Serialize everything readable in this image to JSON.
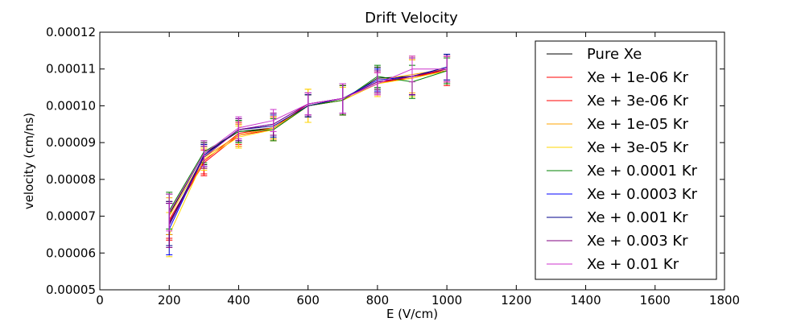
{
  "chart_data": {
    "type": "line",
    "title": "Drift Velocity",
    "xlabel": "E (V/cm)",
    "ylabel": "velocity (cm/ns)",
    "xlim": [
      0,
      1800
    ],
    "ylim": [
      5e-05,
      0.00012
    ],
    "xticks": [
      "0",
      "200",
      "400",
      "600",
      "800",
      "1000",
      "1200",
      "1400",
      "1600",
      "1800"
    ],
    "yticks": [
      "0.00005",
      "0.00006",
      "0.00007",
      "0.00008",
      "0.00009",
      "0.00010",
      "0.00011",
      "0.00012"
    ],
    "grid": false,
    "legend_position": "top-right",
    "x": [
      200,
      300,
      400,
      500,
      600,
      700,
      800,
      900,
      1000
    ],
    "series": [
      {
        "name": "Pure Xe",
        "color": "#000000",
        "values": [
          7.05e-05,
          8.7e-05,
          9.3e-05,
          9.4e-05,
          0.0001,
          0.0001015,
          0.0001075,
          0.000108,
          0.0001095
        ],
        "errors": [
          5.5e-06,
          3e-06,
          3e-06,
          3e-06,
          3e-06,
          4e-06,
          3e-06,
          5e-06,
          3.5e-06
        ]
      },
      {
        "name": "Xe + 1e-06 Kr",
        "color": "#ff0000",
        "values": [
          6.9e-05,
          8.5e-05,
          9.25e-05,
          9.4e-05,
          0.0001005,
          0.000102,
          0.0001065,
          0.0001075,
          0.00011
        ],
        "errors": [
          5e-06,
          3.5e-06,
          3e-06,
          3e-06,
          3e-06,
          4e-06,
          3e-06,
          5e-06,
          3.5e-06
        ]
      },
      {
        "name": "Xe + 3e-06 Kr",
        "color": "#ff0000",
        "values": [
          6.85e-05,
          8.45e-05,
          9.2e-05,
          9.35e-05,
          0.0001,
          0.0001015,
          0.000106,
          0.000108,
          0.0001095
        ],
        "errors": [
          5e-06,
          3.5e-06,
          3e-06,
          3e-06,
          3e-06,
          4e-06,
          3e-06,
          5e-06,
          4e-06
        ]
      },
      {
        "name": "Xe + 1e-05 Kr",
        "color": "#ffa500",
        "values": [
          7e-05,
          8.6e-05,
          9.2e-05,
          9.4e-05,
          0.0001,
          0.000102,
          0.000107,
          0.0001085,
          0.00011
        ],
        "errors": [
          5e-06,
          3e-06,
          3e-06,
          3e-06,
          4.5e-06,
          4e-06,
          3e-06,
          5e-06,
          3.5e-06
        ]
      },
      {
        "name": "Xe + 3e-05 Kr",
        "color": "#ffd700",
        "values": [
          6.5e-05,
          8.55e-05,
          9.15e-05,
          9.35e-05,
          0.0001,
          0.0001015,
          0.000106,
          0.0001075,
          0.0001095
        ],
        "errors": [
          6e-06,
          3e-06,
          3e-06,
          3e-06,
          4.5e-06,
          3.5e-06,
          3.5e-06,
          5e-06,
          3.5e-06
        ]
      },
      {
        "name": "Xe + 0.0001 Kr",
        "color": "#008000",
        "values": [
          7.15e-05,
          8.75e-05,
          9.3e-05,
          9.35e-05,
          0.0001,
          0.0001015,
          0.000108,
          0.0001065,
          0.0001095
        ],
        "errors": [
          5e-06,
          3e-06,
          3e-06,
          3e-06,
          3e-06,
          4e-06,
          3e-06,
          4.5e-06,
          3.5e-06
        ]
      },
      {
        "name": "Xe + 0.0003 Kr",
        "color": "#0000ff",
        "values": [
          6.65e-05,
          8.65e-05,
          9.35e-05,
          9.5e-05,
          0.0001005,
          0.000102,
          0.000107,
          0.000108,
          0.0001105
        ],
        "errors": [
          7e-06,
          3e-06,
          3e-06,
          3e-06,
          3e-06,
          4e-06,
          3e-06,
          5e-06,
          3.5e-06
        ]
      },
      {
        "name": "Xe + 0.001 Kr",
        "color": "#00008b",
        "values": [
          6.8e-05,
          8.65e-05,
          9.35e-05,
          9.45e-05,
          0.0001,
          0.000102,
          0.0001065,
          0.000108,
          0.0001105
        ],
        "errors": [
          6e-06,
          3e-06,
          3e-06,
          3e-06,
          3e-06,
          4e-06,
          3e-06,
          5e-06,
          3.5e-06
        ]
      },
      {
        "name": "Xe + 0.003 Kr",
        "color": "#800080",
        "values": [
          6.75e-05,
          8.6e-05,
          9.35e-05,
          9.5e-05,
          0.0001005,
          0.000102,
          0.0001065,
          0.000108,
          0.00011
        ],
        "errors": [
          6e-06,
          3e-06,
          3e-06,
          3e-06,
          3e-06,
          4e-06,
          3e-06,
          5e-06,
          3.5e-06
        ]
      },
      {
        "name": "Xe + 0.01 Kr",
        "color": "#cc33cc",
        "values": [
          7.1e-05,
          8.7e-05,
          9.4e-05,
          9.6e-05,
          0.0001005,
          0.000102,
          0.000106,
          0.00011,
          0.00011
        ],
        "errors": [
          5e-06,
          3.5e-06,
          3e-06,
          3e-06,
          3e-06,
          4e-06,
          3e-06,
          3.5e-06,
          3.5e-06
        ]
      }
    ]
  }
}
